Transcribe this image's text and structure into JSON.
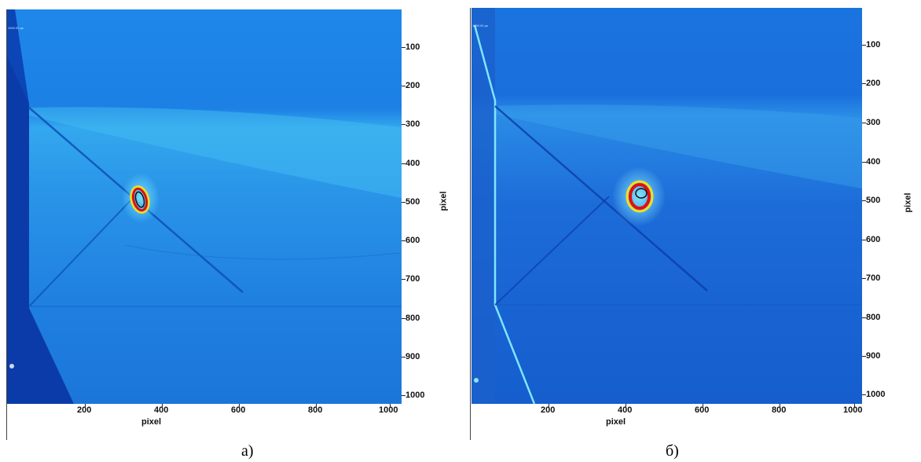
{
  "panels": [
    {
      "id": "a",
      "caption": "а)",
      "x_axis": {
        "title": "pixel",
        "ticks": [
          "200",
          "400",
          "600",
          "800",
          "1000"
        ]
      },
      "y_axis": {
        "title": "pixel",
        "ticks": [
          "100",
          "200",
          "300",
          "400",
          "500",
          "600",
          "700",
          "800",
          "900",
          "1000"
        ]
      },
      "scale_note": "1000.00 µs"
    },
    {
      "id": "b",
      "caption": "б)",
      "x_axis": {
        "title": "pixel",
        "ticks": [
          "200",
          "400",
          "600",
          "800",
          "1000"
        ]
      },
      "y_axis": {
        "title": "pixel",
        "ticks": [
          "100",
          "200",
          "300",
          "400",
          "500",
          "600",
          "700",
          "800",
          "900",
          "1000"
        ]
      },
      "scale_note": "1000.00 µs"
    }
  ],
  "colors": {
    "background_blue": "#1e82e6",
    "dark_blue": "#0a3aa8",
    "light_band": "#3ab4f0",
    "hot_red": "#e01010",
    "hot_yellow": "#f0e020"
  }
}
